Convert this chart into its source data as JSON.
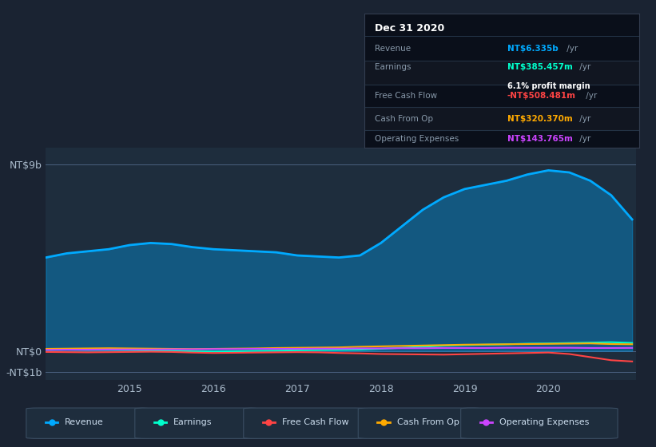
{
  "bg_color": "#1a2332",
  "plot_bg_color": "#1e2d3d",
  "grid_color": "#2a3d52",
  "years": [
    2014.0,
    2014.25,
    2014.5,
    2014.75,
    2015.0,
    2015.25,
    2015.5,
    2015.75,
    2016.0,
    2016.25,
    2016.5,
    2016.75,
    2017.0,
    2017.25,
    2017.5,
    2017.75,
    2018.0,
    2018.25,
    2018.5,
    2018.75,
    2019.0,
    2019.25,
    2019.5,
    2019.75,
    2020.0,
    2020.25,
    2020.5,
    2020.75,
    2021.0
  ],
  "revenue": [
    4.5,
    4.7,
    4.8,
    4.9,
    5.1,
    5.2,
    5.15,
    5.0,
    4.9,
    4.85,
    4.8,
    4.75,
    4.6,
    4.55,
    4.5,
    4.6,
    5.2,
    6.0,
    6.8,
    7.4,
    7.8,
    8.0,
    8.2,
    8.5,
    8.7,
    8.6,
    8.2,
    7.5,
    6.335
  ],
  "earnings": [
    0.05,
    0.06,
    0.05,
    0.05,
    0.04,
    0.02,
    0.01,
    -0.02,
    -0.03,
    -0.02,
    0.0,
    0.01,
    0.03,
    0.04,
    0.05,
    0.06,
    0.1,
    0.15,
    0.2,
    0.25,
    0.28,
    0.3,
    0.32,
    0.35,
    0.36,
    0.38,
    0.4,
    0.42,
    0.385
  ],
  "free_cash_flow": [
    -0.05,
    -0.06,
    -0.07,
    -0.06,
    -0.05,
    -0.04,
    -0.05,
    -0.08,
    -0.1,
    -0.09,
    -0.08,
    -0.07,
    -0.06,
    -0.07,
    -0.1,
    -0.12,
    -0.15,
    -0.16,
    -0.17,
    -0.18,
    -0.16,
    -0.14,
    -0.12,
    -0.1,
    -0.08,
    -0.15,
    -0.3,
    -0.45,
    -0.508
  ],
  "cash_from_op": [
    0.1,
    0.11,
    0.12,
    0.13,
    0.12,
    0.11,
    0.1,
    0.09,
    0.1,
    0.11,
    0.12,
    0.14,
    0.15,
    0.16,
    0.17,
    0.2,
    0.22,
    0.24,
    0.26,
    0.28,
    0.3,
    0.31,
    0.32,
    0.33,
    0.34,
    0.35,
    0.36,
    0.33,
    0.32
  ],
  "operating_expenses": [
    0.05,
    0.06,
    0.06,
    0.07,
    0.07,
    0.07,
    0.08,
    0.08,
    0.09,
    0.09,
    0.1,
    0.1,
    0.1,
    0.11,
    0.11,
    0.12,
    0.12,
    0.13,
    0.13,
    0.14,
    0.14,
    0.14,
    0.15,
    0.15,
    0.15,
    0.15,
    0.14,
    0.14,
    0.144
  ],
  "revenue_color": "#00aaff",
  "earnings_color": "#00ffcc",
  "fcf_color": "#ff4444",
  "cash_op_color": "#ffaa00",
  "op_exp_color": "#cc44ff",
  "ylabels": [
    "-NT$1b",
    "NT$0",
    "NT$9b"
  ],
  "ytick_vals": [
    -1,
    0,
    9
  ],
  "xticks": [
    2015,
    2016,
    2017,
    2018,
    2019,
    2020
  ],
  "box_title": "Dec 31 2020",
  "box_rows": [
    {
      "label": "Revenue",
      "value": "NT$6.335b",
      "vcolor": "#00aaff",
      "suffix": " /yr",
      "extra": ""
    },
    {
      "label": "Earnings",
      "value": "NT$385.457m",
      "vcolor": "#00ffcc",
      "suffix": " /yr",
      "extra": "6.1% profit margin"
    },
    {
      "label": "Free Cash Flow",
      "value": "-NT$508.481m",
      "vcolor": "#ff4444",
      "suffix": " /yr",
      "extra": ""
    },
    {
      "label": "Cash From Op",
      "value": "NT$320.370m",
      "vcolor": "#ffaa00",
      "suffix": " /yr",
      "extra": ""
    },
    {
      "label": "Operating Expenses",
      "value": "NT$143.765m",
      "vcolor": "#cc44ff",
      "suffix": " /yr",
      "extra": ""
    }
  ],
  "legend_items": [
    {
      "label": "Revenue",
      "color": "#00aaff"
    },
    {
      "label": "Earnings",
      "color": "#00ffcc"
    },
    {
      "label": "Free Cash Flow",
      "color": "#ff4444"
    },
    {
      "label": "Cash From Op",
      "color": "#ffaa00"
    },
    {
      "label": "Operating Expenses",
      "color": "#cc44ff"
    }
  ]
}
